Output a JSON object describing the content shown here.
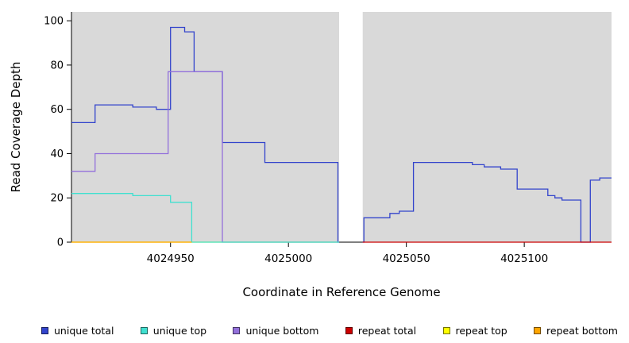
{
  "chart_data": {
    "type": "line",
    "title": "",
    "xlabel": "Coordinate in Reference Genome",
    "ylabel": "Read Coverage Depth",
    "xlim": [
      4024908,
      4025137
    ],
    "ylim": [
      0,
      104
    ],
    "x_ticks": [
      {
        "value": 4024950,
        "label": "4024950"
      },
      {
        "value": 4025000,
        "label": "4025000"
      },
      {
        "value": 4025050,
        "label": "4025050"
      },
      {
        "value": 4025100,
        "label": "4025100"
      }
    ],
    "y_ticks": [
      {
        "value": 0,
        "label": "0"
      },
      {
        "value": 20,
        "label": "20"
      },
      {
        "value": 40,
        "label": "40"
      },
      {
        "value": 60,
        "label": "60"
      },
      {
        "value": 80,
        "label": "80"
      },
      {
        "value": 100,
        "label": "100"
      }
    ],
    "panel_bg": "#d9d9d9",
    "grid": false,
    "legend_position": "bottom",
    "step": "after",
    "gap": {
      "x1": 4025021.5,
      "x2": 4025031.5
    },
    "series": [
      {
        "name": "repeat top",
        "segment": "left",
        "color": "#ffff00",
        "points": [
          [
            4024908,
            0
          ]
        ],
        "x_end": 4025021.5
      },
      {
        "name": "unique total",
        "segment": "left",
        "color": "#3344cc",
        "points": [
          [
            4024908,
            54
          ],
          [
            4024918,
            62
          ],
          [
            4024934,
            61
          ],
          [
            4024944,
            60
          ],
          [
            4024950,
            97
          ],
          [
            4024956,
            95
          ],
          [
            4024960,
            77
          ],
          [
            4024972,
            45
          ],
          [
            4024990,
            36
          ],
          [
            4025021,
            0
          ]
        ],
        "x_end": 4025021.5
      },
      {
        "name": "unique total",
        "segment": "right",
        "color": "#3344cc",
        "points": [
          [
            4025031.5,
            0
          ],
          [
            4025032,
            11
          ],
          [
            4025043,
            13
          ],
          [
            4025047,
            14
          ],
          [
            4025053,
            36
          ],
          [
            4025078,
            35
          ],
          [
            4025083,
            34
          ],
          [
            4025090,
            33
          ],
          [
            4025097,
            24
          ],
          [
            4025110,
            21
          ],
          [
            4025113,
            20
          ],
          [
            4025116,
            19
          ],
          [
            4025124,
            0
          ],
          [
            4025128,
            28
          ],
          [
            4025132,
            29
          ]
        ],
        "x_end": 4025137
      },
      {
        "name": "repeat total",
        "segment": "right",
        "color": "#cc0000",
        "points": [
          [
            4025031.5,
            0
          ]
        ],
        "x_end": 4025137
      },
      {
        "name": "unique bottom",
        "segment": "left",
        "color": "#9370db",
        "points": [
          [
            4024908,
            32
          ],
          [
            4024918,
            40
          ],
          [
            4024949,
            77
          ],
          [
            4024972,
            0
          ]
        ],
        "x_end": 4025021.5
      },
      {
        "name": "unique top",
        "segment": "left",
        "color": "#40e0d0",
        "points": [
          [
            4024908,
            22
          ],
          [
            4024934,
            21
          ],
          [
            4024950,
            18
          ],
          [
            4024959,
            0
          ]
        ],
        "x_end": 4025021.5
      },
      {
        "name": "repeat bottom",
        "segment": "left",
        "color": "#ffa500",
        "points": [
          [
            4024908,
            0
          ]
        ],
        "x_end": 4024959
      }
    ],
    "legend": [
      {
        "label": "unique total",
        "color": "#3344cc"
      },
      {
        "label": "unique top",
        "color": "#40e0d0"
      },
      {
        "label": "unique bottom",
        "color": "#9370db"
      },
      {
        "label": "repeat total",
        "color": "#cc0000"
      },
      {
        "label": "repeat top",
        "color": "#ffff00"
      },
      {
        "label": "repeat bottom",
        "color": "#ffa500"
      }
    ]
  }
}
